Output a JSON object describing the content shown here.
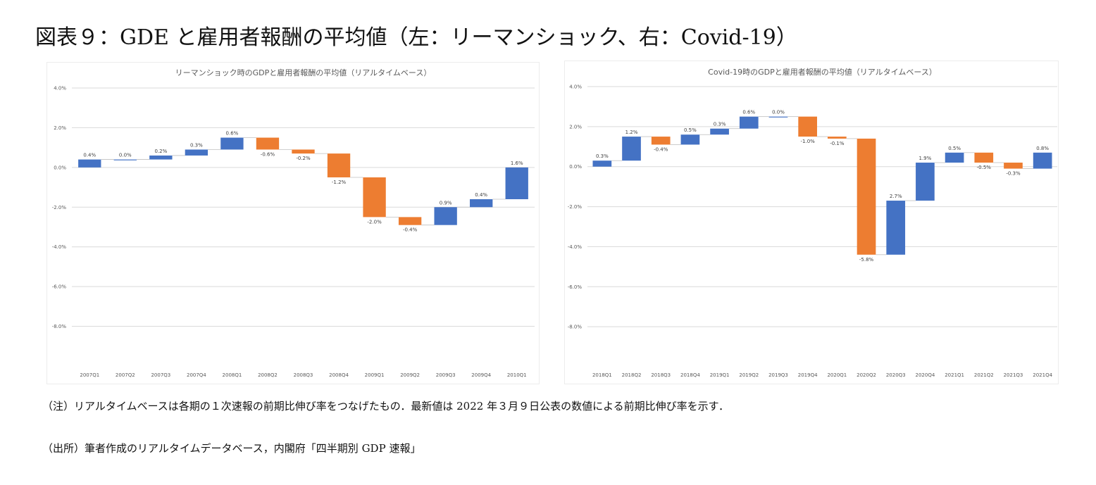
{
  "title": "図表９：GDE と雇用者報酬の平均値（左：リーマンショック、右：Covid-19）",
  "note": "（注）リアルタイムベースは各期の１次速報の前期比伸び率をつなげたもの．最新値は 2022 年３月９日公表の数値による前期比伸び率を示す．",
  "source": "（出所）筆者作成のリアルタイムデータベース，内閣府「四半期別 GDP 速報」",
  "colors": {
    "increase": "#4472C4",
    "decrease": "#ED7D31",
    "grid": "#D9D9D9",
    "text": "#595959"
  },
  "chart_data": [
    {
      "type": "bar",
      "subtype": "waterfall",
      "title": "リーマンショック時のGDPと雇用者報酬の平均値（リアルタイムベース）",
      "categories": [
        "2007Q1",
        "2007Q2",
        "2007Q3",
        "2007Q4",
        "2008Q1",
        "2008Q2",
        "2008Q3",
        "2008Q4",
        "2009Q1",
        "2009Q2",
        "2009Q3",
        "2009Q4",
        "2010Q1"
      ],
      "values": [
        0.4,
        0.0,
        0.2,
        0.3,
        0.6,
        -0.6,
        -0.2,
        -1.2,
        -2.0,
        -0.4,
        0.9,
        0.4,
        1.6
      ],
      "labels": [
        "0.4%",
        "0.0%",
        "0.2%",
        "0.3%",
        "0.6%",
        "-0.6%",
        "-0.2%",
        "-1.2%",
        "-2.0%",
        "-0.4%",
        "0.9%",
        "0.4%",
        "1.6%"
      ],
      "ylim": [
        -10,
        4
      ],
      "yticks": [
        4,
        2,
        0,
        -2,
        -4,
        -6,
        -8
      ],
      "ytick_labels": [
        "4.0%",
        "2.0%",
        "0.0%",
        "-2.0%",
        "-4.0%",
        "-6.0%",
        "-8.0%"
      ],
      "xlabel": "",
      "ylabel": "",
      "grid": true
    },
    {
      "type": "bar",
      "subtype": "waterfall",
      "title": "Covid-19時のGDPと雇用者報酬の平均値（リアルタイムベース）",
      "categories": [
        "2018Q1",
        "2018Q2",
        "2018Q3",
        "2018Q4",
        "2019Q1",
        "2019Q2",
        "2019Q3",
        "2019Q4",
        "2020Q1",
        "2020Q2",
        "2020Q3",
        "2020Q4",
        "2021Q1",
        "2021Q2",
        "2021Q3",
        "2021Q4"
      ],
      "values": [
        0.3,
        1.2,
        -0.4,
        0.5,
        0.3,
        0.6,
        0.0,
        -1.0,
        -0.1,
        -5.8,
        2.7,
        1.9,
        0.5,
        -0.5,
        -0.3,
        0.8
      ],
      "labels": [
        "0.3%",
        "1.2%",
        "-0.4%",
        "0.5%",
        "0.3%",
        "0.6%",
        "0.0%",
        "-1.0%",
        "-0.1%",
        "-5.8%",
        "2.7%",
        "1.9%",
        "0.5%",
        "-0.5%",
        "-0.3%",
        "0.8%"
      ],
      "ylim": [
        -10,
        4
      ],
      "yticks": [
        4,
        2,
        0,
        -2,
        -4,
        -6,
        -8
      ],
      "ytick_labels": [
        "4.0%",
        "2.0%",
        "0.0%",
        "-2.0%",
        "-4.0%",
        "-6.0%",
        "-8.0%"
      ],
      "xlabel": "",
      "ylabel": "",
      "grid": true
    }
  ]
}
